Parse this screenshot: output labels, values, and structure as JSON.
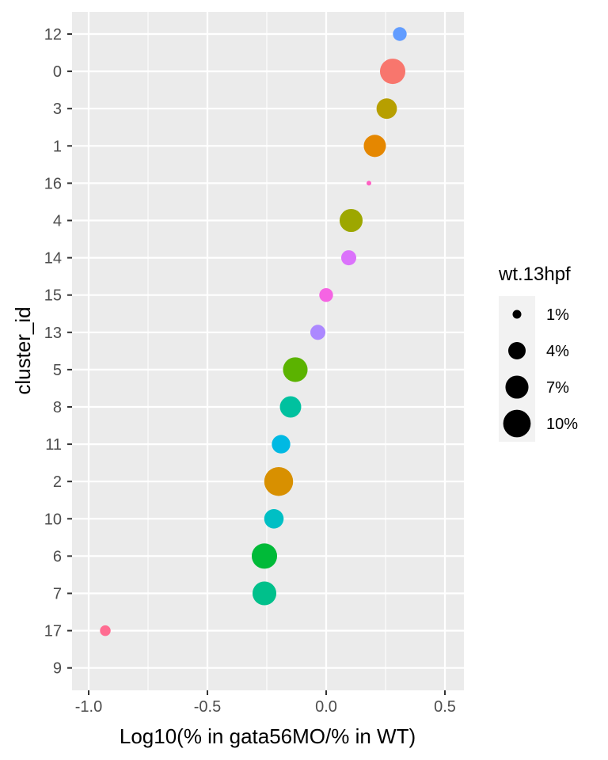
{
  "chart_data": {
    "type": "scatter",
    "xlabel": "Log10(% in gata56MO/% in WT)",
    "ylabel": "cluster_id",
    "xlim": [
      -1.07,
      0.58
    ],
    "x_ticks": [
      -1.0,
      -0.5,
      0.0,
      0.5
    ],
    "x_tick_labels": [
      "-1.0",
      "-0.5",
      "0.0",
      "0.5"
    ],
    "categories": [
      "12",
      "0",
      "3",
      "1",
      "16",
      "4",
      "14",
      "15",
      "13",
      "5",
      "8",
      "11",
      "2",
      "10",
      "6",
      "7",
      "17",
      "9"
    ],
    "points": [
      {
        "cluster": "12",
        "x": 0.31,
        "size_pct": 2.5,
        "color": "#619CFF"
      },
      {
        "cluster": "0",
        "x": 0.28,
        "size_pct": 8.5,
        "color": "#F8766D"
      },
      {
        "cluster": "3",
        "x": 0.255,
        "size_pct": 5.5,
        "color": "#B79F00"
      },
      {
        "cluster": "1",
        "x": 0.205,
        "size_pct": 6.5,
        "color": "#E58700"
      },
      {
        "cluster": "16",
        "x": 0.18,
        "size_pct": 0.3,
        "color": "#FF61C3"
      },
      {
        "cluster": "4",
        "x": 0.105,
        "size_pct": 7.0,
        "color": "#9DA700"
      },
      {
        "cluster": "14",
        "x": 0.095,
        "size_pct": 3.0,
        "color": "#DB72FB"
      },
      {
        "cluster": "15",
        "x": 0.0,
        "size_pct": 2.5,
        "color": "#F564E3"
      },
      {
        "cluster": "13",
        "x": -0.035,
        "size_pct": 3.0,
        "color": "#AC88FF"
      },
      {
        "cluster": "5",
        "x": -0.13,
        "size_pct": 8.0,
        "color": "#5BB300"
      },
      {
        "cluster": "8",
        "x": -0.15,
        "size_pct": 6.0,
        "color": "#00C19F"
      },
      {
        "cluster": "11",
        "x": -0.19,
        "size_pct": 4.5,
        "color": "#00B9E3"
      },
      {
        "cluster": "2",
        "x": -0.2,
        "size_pct": 11.0,
        "color": "#D89000"
      },
      {
        "cluster": "10",
        "x": -0.22,
        "size_pct": 5.0,
        "color": "#00BFC4"
      },
      {
        "cluster": "6",
        "x": -0.26,
        "size_pct": 8.5,
        "color": "#00BA38"
      },
      {
        "cluster": "7",
        "x": -0.26,
        "size_pct": 7.5,
        "color": "#00C08B"
      },
      {
        "cluster": "17",
        "x": -0.93,
        "size_pct": 1.5,
        "color": "#FF6C91"
      }
    ],
    "legend": {
      "title": "wt.13hpf",
      "placement": "right",
      "entries": [
        {
          "label": "1%",
          "size_pct": 1
        },
        {
          "label": "4%",
          "size_pct": 4
        },
        {
          "label": "7%",
          "size_pct": 7
        },
        {
          "label": "10%",
          "size_pct": 10
        }
      ]
    },
    "grid": true,
    "panel_background": "#EBEBEB",
    "grid_color": "#FFFFFF"
  }
}
